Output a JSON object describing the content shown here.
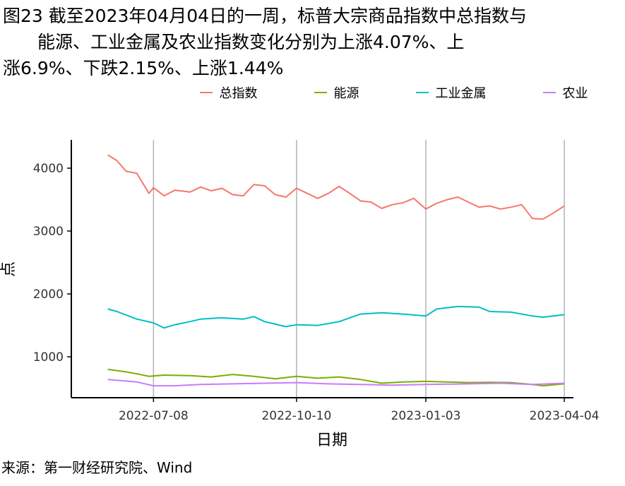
{
  "figure": {
    "title_lines": [
      "图23  截至2023年04月04日的一周，标普大宗商品指数中总指数与",
      "能源、工业金属及农业指数变化分别为上涨4.07%、上",
      "涨6.9%、下跌2.15%、上涨1.44%"
    ],
    "source": "来源：第一财经研究院、Wind"
  },
  "chart_data": {
    "type": "line",
    "xlabel": "日期",
    "ylabel": "点",
    "x_ticks": [
      "2022-07-08",
      "2022-10-10",
      "2023-01-03",
      "2023-04-04"
    ],
    "xlim": [
      "2022-05-15",
      "2023-04-10"
    ],
    "ylim": [
      350,
      4450
    ],
    "y_ticks": [
      1000,
      2000,
      3000,
      4000
    ],
    "grid": "vertical lines at x ticks",
    "legend_position": "top",
    "series": [
      {
        "name": "总指数",
        "color": "#F8766D",
        "points": [
          [
            "2022-06-08",
            4210
          ],
          [
            "2022-06-14",
            4120
          ],
          [
            "2022-06-20",
            3950
          ],
          [
            "2022-06-27",
            3920
          ],
          [
            "2022-07-05",
            3600
          ],
          [
            "2022-07-08",
            3690
          ],
          [
            "2022-07-15",
            3560
          ],
          [
            "2022-07-22",
            3650
          ],
          [
            "2022-08-01",
            3620
          ],
          [
            "2022-08-08",
            3700
          ],
          [
            "2022-08-15",
            3640
          ],
          [
            "2022-08-22",
            3680
          ],
          [
            "2022-08-29",
            3580
          ],
          [
            "2022-09-05",
            3560
          ],
          [
            "2022-09-12",
            3740
          ],
          [
            "2022-09-19",
            3720
          ],
          [
            "2022-09-26",
            3580
          ],
          [
            "2022-10-03",
            3540
          ],
          [
            "2022-10-10",
            3680
          ],
          [
            "2022-10-17",
            3600
          ],
          [
            "2022-10-24",
            3520
          ],
          [
            "2022-10-31",
            3600
          ],
          [
            "2022-11-07",
            3710
          ],
          [
            "2022-11-14",
            3600
          ],
          [
            "2022-11-21",
            3480
          ],
          [
            "2022-11-28",
            3460
          ],
          [
            "2022-12-05",
            3360
          ],
          [
            "2022-12-12",
            3420
          ],
          [
            "2022-12-19",
            3450
          ],
          [
            "2022-12-26",
            3520
          ],
          [
            "2023-01-03",
            3350
          ],
          [
            "2023-01-10",
            3440
          ],
          [
            "2023-01-17",
            3500
          ],
          [
            "2023-01-24",
            3540
          ],
          [
            "2023-01-31",
            3460
          ],
          [
            "2023-02-07",
            3380
          ],
          [
            "2023-02-14",
            3400
          ],
          [
            "2023-02-21",
            3350
          ],
          [
            "2023-02-28",
            3380
          ],
          [
            "2023-03-07",
            3420
          ],
          [
            "2023-03-14",
            3200
          ],
          [
            "2023-03-21",
            3190
          ],
          [
            "2023-03-28",
            3290
          ],
          [
            "2023-04-04",
            3400
          ]
        ]
      },
      {
        "name": "能源",
        "color": "#7CAE00",
        "points": [
          [
            "2022-06-08",
            800
          ],
          [
            "2022-06-20",
            760
          ],
          [
            "2022-06-27",
            730
          ],
          [
            "2022-07-05",
            690
          ],
          [
            "2022-07-15",
            710
          ],
          [
            "2022-08-01",
            700
          ],
          [
            "2022-08-15",
            680
          ],
          [
            "2022-08-29",
            720
          ],
          [
            "2022-09-12",
            690
          ],
          [
            "2022-09-26",
            650
          ],
          [
            "2022-10-10",
            690
          ],
          [
            "2022-10-24",
            660
          ],
          [
            "2022-11-07",
            680
          ],
          [
            "2022-11-21",
            640
          ],
          [
            "2022-12-05",
            580
          ],
          [
            "2022-12-19",
            600
          ],
          [
            "2023-01-03",
            610
          ],
          [
            "2023-01-17",
            600
          ],
          [
            "2023-01-31",
            590
          ],
          [
            "2023-02-14",
            595
          ],
          [
            "2023-02-28",
            590
          ],
          [
            "2023-03-14",
            560
          ],
          [
            "2023-03-21",
            540
          ],
          [
            "2023-04-04",
            570
          ]
        ]
      },
      {
        "name": "工业金属",
        "color": "#00BFC4",
        "points": [
          [
            "2022-06-08",
            1760
          ],
          [
            "2022-06-14",
            1720
          ],
          [
            "2022-06-27",
            1600
          ],
          [
            "2022-07-08",
            1540
          ],
          [
            "2022-07-15",
            1460
          ],
          [
            "2022-07-22",
            1510
          ],
          [
            "2022-08-01",
            1560
          ],
          [
            "2022-08-08",
            1600
          ],
          [
            "2022-08-22",
            1620
          ],
          [
            "2022-09-05",
            1600
          ],
          [
            "2022-09-12",
            1640
          ],
          [
            "2022-09-19",
            1560
          ],
          [
            "2022-10-03",
            1480
          ],
          [
            "2022-10-10",
            1510
          ],
          [
            "2022-10-24",
            1500
          ],
          [
            "2022-11-07",
            1560
          ],
          [
            "2022-11-21",
            1680
          ],
          [
            "2022-12-05",
            1700
          ],
          [
            "2022-12-19",
            1680
          ],
          [
            "2023-01-03",
            1650
          ],
          [
            "2023-01-10",
            1760
          ],
          [
            "2023-01-24",
            1800
          ],
          [
            "2023-02-07",
            1790
          ],
          [
            "2023-02-14",
            1720
          ],
          [
            "2023-02-28",
            1710
          ],
          [
            "2023-03-14",
            1650
          ],
          [
            "2023-03-21",
            1630
          ],
          [
            "2023-04-04",
            1670
          ]
        ]
      },
      {
        "name": "农业",
        "color": "#C77CFF",
        "points": [
          [
            "2022-06-08",
            640
          ],
          [
            "2022-06-27",
            600
          ],
          [
            "2022-07-08",
            540
          ],
          [
            "2022-07-22",
            540
          ],
          [
            "2022-08-08",
            560
          ],
          [
            "2022-08-29",
            570
          ],
          [
            "2022-09-19",
            580
          ],
          [
            "2022-10-10",
            590
          ],
          [
            "2022-10-31",
            570
          ],
          [
            "2022-11-21",
            560
          ],
          [
            "2022-12-12",
            550
          ],
          [
            "2023-01-03",
            560
          ],
          [
            "2023-01-31",
            570
          ],
          [
            "2023-02-21",
            580
          ],
          [
            "2023-03-14",
            560
          ],
          [
            "2023-04-04",
            580
          ]
        ]
      }
    ]
  }
}
